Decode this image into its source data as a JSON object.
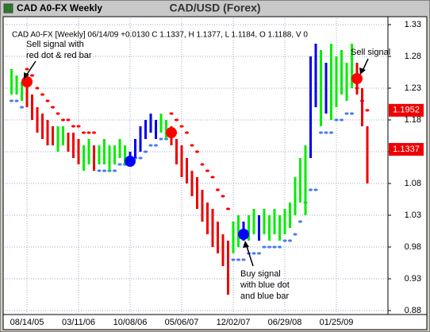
{
  "window_title": "CAD A0-FX Weekly",
  "chart_data": {
    "type": "hlc",
    "title": "CAD/USD (Forex)",
    "info": "CAD A0-FX [Weekly] 06/14/09 +0.0130 C 1.1337, H 1.1377, L 1.1184, O 1.1188, V 0",
    "categories": [
      null,
      null,
      null,
      "08/14/05",
      null,
      null,
      null,
      null,
      null,
      null,
      null,
      null,
      null,
      "03/11/06",
      null,
      null,
      null,
      null,
      null,
      null,
      null,
      null,
      null,
      "10/08/06",
      null,
      null,
      null,
      null,
      null,
      null,
      null,
      null,
      null,
      "05/06/07",
      null,
      null,
      null,
      null,
      null,
      null,
      null,
      null,
      null,
      "12/02/07",
      null,
      null,
      null,
      null,
      null,
      null,
      null,
      null,
      null,
      "06/29/08",
      null,
      null,
      null,
      null,
      null,
      null,
      null,
      null,
      null,
      "01/25/09",
      null,
      null,
      null,
      null,
      null,
      null
    ],
    "high": [
      1.26,
      1.25,
      1.24,
      1.24,
      1.22,
      1.2,
      1.19,
      1.18,
      1.17,
      1.17,
      1.17,
      1.16,
      1.16,
      1.15,
      1.14,
      1.15,
      1.14,
      1.14,
      1.15,
      1.14,
      1.14,
      1.15,
      1.14,
      1.13,
      1.15,
      1.17,
      1.18,
      1.19,
      1.18,
      1.19,
      1.18,
      1.17,
      1.15,
      1.14,
      1.12,
      1.1,
      1.09,
      1.07,
      1.05,
      1.04,
      1.02,
      1.0,
      0.99,
      1.02,
      1.03,
      1.02,
      1.03,
      1.04,
      1.03,
      1.04,
      1.03,
      1.04,
      1.03,
      1.04,
      1.05,
      1.09,
      1.12,
      1.14,
      1.28,
      1.3,
      1.29,
      1.27,
      1.3,
      1.28,
      1.29,
      1.27,
      1.3,
      1.27,
      1.23,
      1.17
    ],
    "low": [
      1.22,
      1.22,
      1.21,
      1.2,
      1.18,
      1.16,
      1.15,
      1.14,
      1.14,
      1.13,
      1.14,
      1.13,
      1.12,
      1.11,
      1.1,
      1.11,
      1.1,
      1.11,
      1.11,
      1.1,
      1.11,
      1.12,
      1.11,
      1.11,
      1.12,
      1.13,
      1.15,
      1.16,
      1.15,
      1.16,
      1.15,
      1.14,
      1.11,
      1.09,
      1.08,
      1.06,
      1.04,
      1.02,
      1.0,
      0.98,
      0.97,
      0.95,
      0.905,
      0.97,
      0.98,
      0.99,
      0.99,
      1.0,
      0.99,
      1.0,
      0.99,
      1.0,
      0.99,
      1.0,
      1.01,
      1.03,
      1.05,
      1.03,
      1.12,
      1.2,
      1.17,
      1.19,
      1.18,
      1.2,
      1.22,
      1.21,
      1.23,
      1.22,
      1.17,
      1.08
    ],
    "bar_colors": [
      "#00ee00",
      "#00ee00",
      "#00ee00",
      "#ee0000",
      "#ee0000",
      "#ee0000",
      "#ee0000",
      "#ee0000",
      "#ee0000",
      "#00ee00",
      "#00ee00",
      "#ee0000",
      "#ee0000",
      "#ee0000",
      "#00ee00",
      "#00ee00",
      "#ee0000",
      "#00ee00",
      "#00ee00",
      "#00ee00",
      "#00ee00",
      "#00ee00",
      "#00ee00",
      "#0000ee",
      "#0000ee",
      "#0000ee",
      "#0000ee",
      "#0000ee",
      "#0000ee",
      "#00ee00",
      "#00ee00",
      "#ee0000",
      "#ee0000",
      "#ee0000",
      "#ee0000",
      "#ee0000",
      "#ee0000",
      "#ee0000",
      "#ee0000",
      "#ee0000",
      "#ee0000",
      "#ee0000",
      "#ee0000",
      "#00ee00",
      "#00ee00",
      "#0000ee",
      "#00ee00",
      "#00ee00",
      "#0000ee",
      "#00ee00",
      "#00ee00",
      "#00ee00",
      "#00ee00",
      "#00ee00",
      "#00ee00",
      "#00ee00",
      "#00ee00",
      "#00ee00",
      "#0000ee",
      "#0000ee",
      "#00ee00",
      "#0000ee",
      "#00ee00",
      "#00ee00",
      "#00ee00",
      "#00ee00",
      "#00ee00",
      "#ee0000",
      "#ee0000",
      "#ee0000"
    ],
    "stops": [
      {
        "color": "#ff0000",
        "values": [
          null,
          null,
          null,
          1.26,
          1.25,
          1.23,
          1.22,
          1.21,
          1.2,
          1.19,
          1.18,
          1.18,
          1.17,
          1.17,
          1.16,
          1.16,
          1.16,
          null,
          null,
          null,
          null,
          null,
          null,
          null,
          null,
          null,
          null,
          null,
          null,
          null,
          null,
          1.19,
          1.18,
          1.17,
          1.16,
          1.14,
          1.13,
          1.11,
          1.1,
          1.09,
          1.07,
          1.06,
          1.04,
          null,
          null,
          null,
          null,
          null,
          null,
          null,
          null,
          null,
          null,
          null,
          null,
          null,
          null,
          null,
          null,
          null,
          null,
          null,
          null,
          null,
          null,
          null,
          null,
          1.23,
          1.21,
          1.1952
        ]
      },
      {
        "color": "#4a7cf0",
        "values": [
          1.21,
          1.21,
          1.2,
          null,
          null,
          null,
          null,
          null,
          null,
          null,
          null,
          null,
          null,
          null,
          null,
          null,
          null,
          1.1,
          1.1,
          1.1,
          1.1,
          1.11,
          1.11,
          1.11,
          1.12,
          1.12,
          1.13,
          1.14,
          1.14,
          1.15,
          1.15,
          null,
          null,
          null,
          null,
          null,
          null,
          null,
          null,
          null,
          null,
          null,
          null,
          0.96,
          0.96,
          0.96,
          0.97,
          0.97,
          0.97,
          0.98,
          0.98,
          0.98,
          0.98,
          0.99,
          0.99,
          1.0,
          1.02,
          1.05,
          1.07,
          1.07,
          1.16,
          1.16,
          1.16,
          1.18,
          1.18,
          1.19,
          1.19,
          null,
          null,
          null
        ]
      }
    ],
    "signals": [
      {
        "index": 3,
        "value": 1.24,
        "color": "#ff0000"
      },
      {
        "index": 23,
        "value": 1.115,
        "color": "#0000ff"
      },
      {
        "index": 31,
        "value": 1.16,
        "color": "#ff0000"
      },
      {
        "index": 45,
        "value": 1.0,
        "color": "#0000ff"
      },
      {
        "index": 67,
        "value": 1.245,
        "color": "#ff0000"
      }
    ],
    "price_labels": [
      1.1952,
      1.1337
    ],
    "price_label_color": "#ee0000",
    "annotations": [
      {
        "lines": [
          "Sell signal with",
          "red dot & red bar"
        ]
      },
      {
        "lines": [
          "Sell signal"
        ]
      },
      {
        "lines": [
          "Buy signal",
          "with blue dot",
          "and blue bar"
        ]
      }
    ],
    "ylim": [
      0.875,
      1.34
    ],
    "yticks": [
      0.88,
      0.93,
      0.98,
      1.03,
      1.08,
      1.13,
      1.18,
      1.23,
      1.28,
      1.33
    ],
    "grid": true
  }
}
